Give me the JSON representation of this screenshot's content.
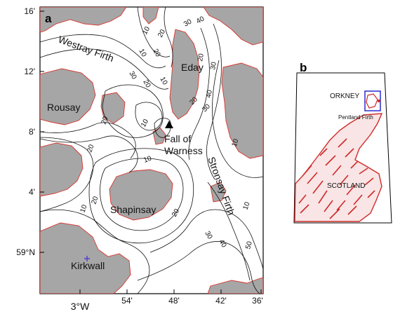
{
  "panel_a": {
    "letter": "a",
    "lat_labels": [
      "16'",
      "12'",
      "8'",
      "4'",
      "59°N"
    ],
    "lon_labels": [
      "3°W",
      "54'",
      "48'",
      "42'",
      "36'"
    ],
    "places": {
      "westray_firth": "Westray Firth",
      "eday": "Eday",
      "rousay": "Rousay",
      "fall_of_warness_1": "Fall of",
      "fall_of_warness_2": "Warness",
      "stronsay_firth": "Stronsay Firth",
      "shapinsay": "Shapinsay",
      "kirkwall": "Kirkwall"
    },
    "depth_labels": [
      "10",
      "20",
      "30",
      "40",
      "10",
      "20",
      "30",
      "20",
      "10",
      "20",
      "30",
      "40",
      "10",
      "20",
      "30",
      "10",
      "20",
      "20",
      "10",
      "20",
      "30",
      "40",
      "50",
      "10",
      "10",
      "20"
    ],
    "colors": {
      "land": "#a6a6a6",
      "coastline": "#d8342c",
      "contour": "#111111",
      "marker": "#000000"
    },
    "marker": "triangle-icon"
  },
  "panel_b": {
    "letter": "b",
    "orkney": "ORKNEY",
    "pentland": "Pentland Firth",
    "scotland": "SCOTLAND",
    "colors": {
      "coastline": "#cf2a2a",
      "box": "#2a2ad0"
    }
  }
}
